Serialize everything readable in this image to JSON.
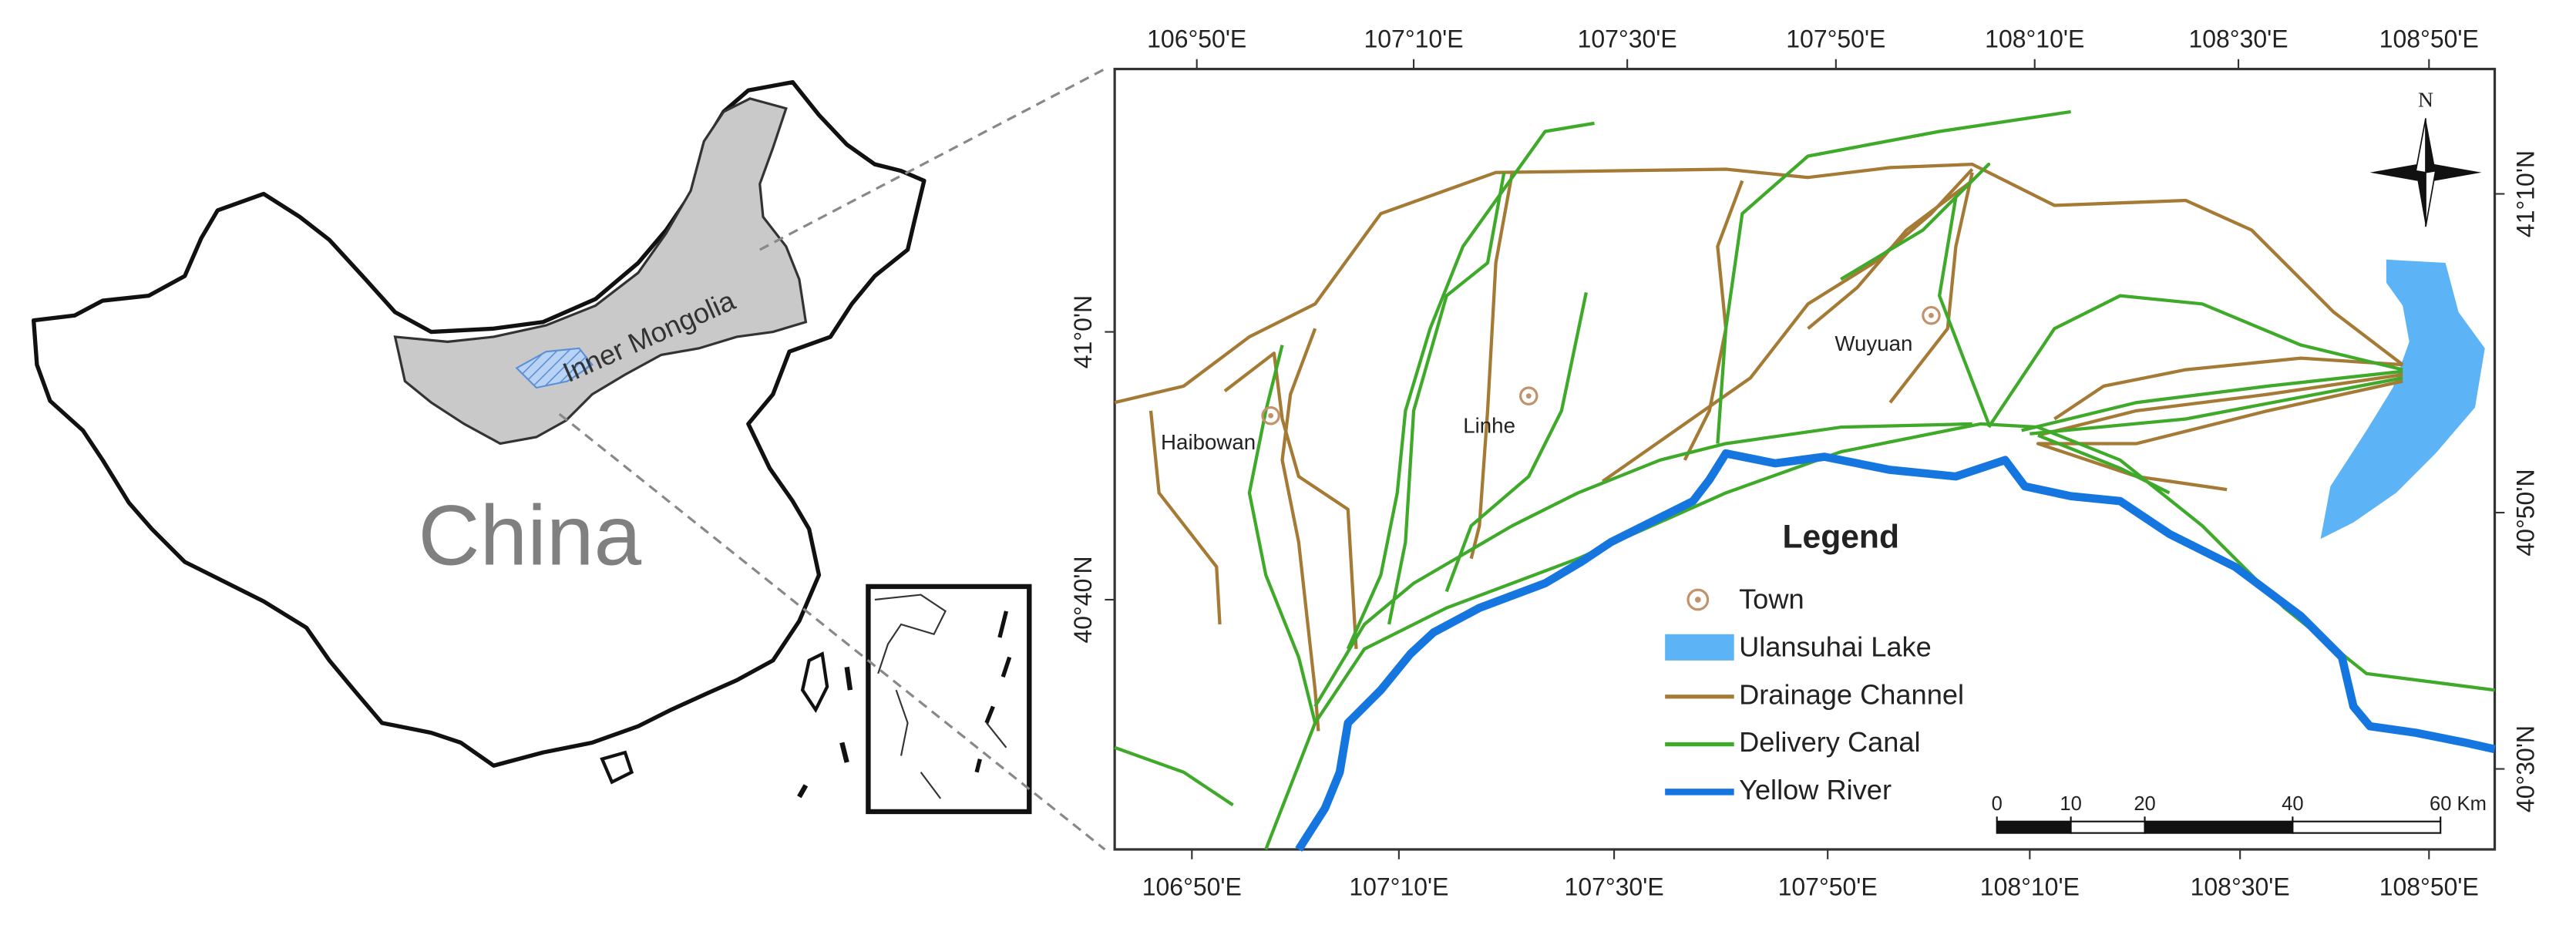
{
  "left_map": {
    "country": "China",
    "region": "Inner Mongolia"
  },
  "map": {
    "lon_labels_top": [
      "106°50'E",
      "107°10'E",
      "107°30'E",
      "107°50'E",
      "108°10'E",
      "108°30'E",
      "108°50'E"
    ],
    "lon_labels_bottom": [
      "106°50'E",
      "107°10'E",
      "107°30'E",
      "107°50'E",
      "108°10'E",
      "108°30'E",
      "108°50'E"
    ],
    "lat_labels_left": [
      "41°0'N",
      "40°40'N"
    ],
    "lat_labels_right": [
      "41°10'N",
      "40°50'N",
      "40°30'N"
    ],
    "north": "N",
    "towns": [
      "Haibowan",
      "Linhe",
      "Wuyuan"
    ]
  },
  "legend": {
    "title": "Legend",
    "items": [
      "Town",
      "Ulansuhai Lake",
      "Drainage Channel",
      "Delivery Canal",
      "Yellow River"
    ]
  },
  "scale_bar": {
    "ticks": [
      0,
      10,
      20,
      40,
      60
    ],
    "unit": "Km"
  }
}
